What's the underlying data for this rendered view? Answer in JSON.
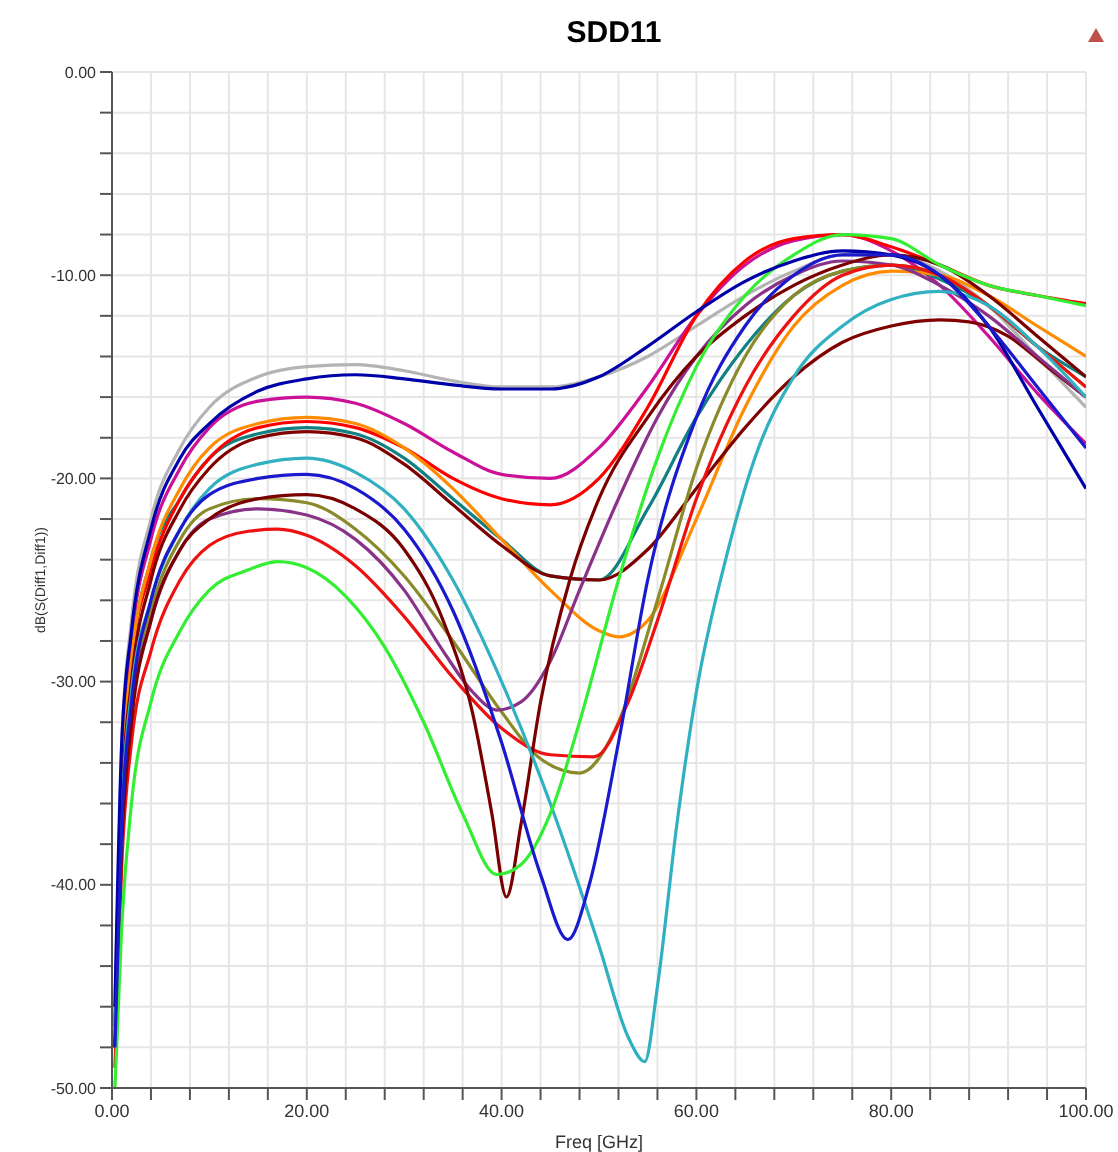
{
  "chart_data": {
    "type": "line",
    "title": "SDD11",
    "xlabel": "Freq [GHz]",
    "ylabel": "dB(S(Diff1,Diff1))",
    "grid": true,
    "line_style": "solid",
    "xlim": [
      0,
      100
    ],
    "ylim": [
      -50,
      0
    ],
    "xticks": [
      {
        "value": 0,
        "label": "0.00"
      },
      {
        "value": 4,
        "label": null
      },
      {
        "value": 8,
        "label": null
      },
      {
        "value": 12,
        "label": null
      },
      {
        "value": 16,
        "label": null
      },
      {
        "value": 20,
        "label": "20.00"
      },
      {
        "value": 24,
        "label": null
      },
      {
        "value": 28,
        "label": null
      },
      {
        "value": 32,
        "label": null
      },
      {
        "value": 36,
        "label": null
      },
      {
        "value": 40,
        "label": "40.00"
      },
      {
        "value": 44,
        "label": null
      },
      {
        "value": 48,
        "label": null
      },
      {
        "value": 52,
        "label": null
      },
      {
        "value": 56,
        "label": null
      },
      {
        "value": 60,
        "label": "60.00"
      },
      {
        "value": 64,
        "label": null
      },
      {
        "value": 68,
        "label": null
      },
      {
        "value": 72,
        "label": null
      },
      {
        "value": 76,
        "label": null
      },
      {
        "value": 80,
        "label": "80.00"
      },
      {
        "value": 84,
        "label": null
      },
      {
        "value": 88,
        "label": null
      },
      {
        "value": 92,
        "label": null
      },
      {
        "value": 96,
        "label": null
      },
      {
        "value": 100,
        "label": "100.00"
      }
    ],
    "yticks": [
      {
        "value": -50,
        "label": "-50.00"
      },
      {
        "value": -48,
        "label": null
      },
      {
        "value": -46,
        "label": null
      },
      {
        "value": -44,
        "label": null
      },
      {
        "value": -42,
        "label": null
      },
      {
        "value": -40,
        "label": "-40.00"
      },
      {
        "value": -38,
        "label": null
      },
      {
        "value": -36,
        "label": null
      },
      {
        "value": -34,
        "label": null
      },
      {
        "value": -32,
        "label": null
      },
      {
        "value": -30,
        "label": "-30.00"
      },
      {
        "value": -28,
        "label": null
      },
      {
        "value": -26,
        "label": null
      },
      {
        "value": -24,
        "label": null
      },
      {
        "value": -22,
        "label": null
      },
      {
        "value": -20,
        "label": "-20.00"
      },
      {
        "value": -18,
        "label": null
      },
      {
        "value": -16,
        "label": null
      },
      {
        "value": -14,
        "label": null
      },
      {
        "value": -12,
        "label": null
      },
      {
        "value": -10,
        "label": "-10.00"
      },
      {
        "value": -8,
        "label": null
      },
      {
        "value": -6,
        "label": null
      },
      {
        "value": -4,
        "label": null
      },
      {
        "value": -2,
        "label": null
      },
      {
        "value": 0,
        "label": "0.00"
      }
    ],
    "series": [
      {
        "color": "#b4b4b4",
        "x": [
          0.3,
          1,
          2,
          4,
          7,
          10,
          15,
          20,
          25,
          30,
          35,
          40,
          45,
          50,
          55,
          60,
          65,
          70,
          75,
          80,
          85,
          90,
          95,
          100
        ],
        "values": [
          -46,
          -33,
          -27,
          -22,
          -18.5,
          -16.5,
          -15,
          -14.5,
          -14.4,
          -14.7,
          -15.2,
          -15.5,
          -15.5,
          -15,
          -14,
          -12.5,
          -11,
          -9.8,
          -9,
          -9,
          -9.8,
          -11.5,
          -14,
          -16.5
        ]
      },
      {
        "color": "#cc1199",
        "x": [
          0.3,
          1,
          2,
          4,
          7,
          10,
          15,
          20,
          25,
          30,
          35,
          40,
          45,
          50,
          55,
          60,
          65,
          70,
          75,
          80,
          85,
          90,
          95,
          100
        ],
        "values": [
          -47,
          -34,
          -28,
          -23,
          -19.5,
          -17.5,
          -16.2,
          -16,
          -16.3,
          -17.3,
          -18.7,
          -19.8,
          -20,
          -18.5,
          -15.5,
          -12,
          -9.5,
          -8.3,
          -8,
          -8.8,
          -10.5,
          -13,
          -15.8,
          -18.3
        ]
      },
      {
        "color": "#108080",
        "x": [
          0.3,
          1,
          2,
          4,
          7,
          10,
          15,
          20,
          25,
          30,
          35,
          40,
          45,
          50,
          55,
          60,
          65,
          70,
          75,
          80,
          85,
          90,
          95,
          100
        ],
        "values": [
          -47,
          -35,
          -29,
          -24,
          -21,
          -19,
          -17.8,
          -17.5,
          -17.8,
          -19,
          -21,
          -23,
          -24.8,
          -25,
          -21.5,
          -17,
          -13.5,
          -11,
          -9.8,
          -9.5,
          -10.2,
          -11.5,
          -13.5,
          -15
        ]
      },
      {
        "color": "#ff0000",
        "x": [
          0.3,
          1,
          2,
          4,
          7,
          10,
          15,
          20,
          25,
          30,
          35,
          40,
          45,
          50,
          55,
          60,
          65,
          70,
          75,
          80,
          85,
          90,
          95,
          100
        ],
        "values": [
          -47,
          -35,
          -29,
          -24.5,
          -21,
          -19,
          -17.5,
          -17.2,
          -17.5,
          -18.5,
          -20,
          -21,
          -21.3,
          -20,
          -16.5,
          -12,
          -9.3,
          -8.2,
          -8,
          -8.6,
          -9.5,
          -10.5,
          -11,
          -11.4
        ]
      },
      {
        "color": "#ff8c00",
        "x": [
          0.3,
          1,
          2,
          4,
          7,
          10,
          15,
          20,
          25,
          30,
          35,
          40,
          45,
          50,
          52,
          55,
          60,
          65,
          70,
          75,
          80,
          85,
          90,
          95,
          100
        ],
        "values": [
          -47,
          -35,
          -29,
          -24,
          -20.5,
          -18.5,
          -17.3,
          -17,
          -17.3,
          -18.5,
          -20.5,
          -23,
          -25.5,
          -27.5,
          -27.8,
          -27,
          -22,
          -16.5,
          -12.5,
          -10.5,
          -9.8,
          -10,
          -11,
          -12.5,
          -14
        ]
      },
      {
        "color": "#800000",
        "x": [
          0.3,
          1,
          2,
          4,
          7,
          10,
          15,
          20,
          25,
          30,
          35,
          40,
          45,
          50,
          55,
          60,
          65,
          70,
          75,
          80,
          85,
          88,
          92,
          96,
          100
        ],
        "values": [
          -48,
          -36,
          -30,
          -25,
          -21.5,
          -19.5,
          -18,
          -17.7,
          -18,
          -19.3,
          -21.3,
          -23.3,
          -24.8,
          -25,
          -23.5,
          -20.5,
          -17.5,
          -15,
          -13.3,
          -12.5,
          -12.2,
          -12.3,
          -13,
          -14.5,
          -16
        ]
      },
      {
        "color": "#8a8a2a",
        "x": [
          0.3,
          1,
          2,
          4,
          7,
          10,
          15,
          20,
          25,
          30,
          35,
          40,
          44,
          48,
          52,
          56,
          60,
          65,
          70,
          75,
          80,
          85,
          90,
          95,
          100
        ],
        "values": [
          -48,
          -37,
          -31,
          -26.5,
          -23,
          -21.5,
          -21,
          -21.2,
          -22.5,
          -24.8,
          -28,
          -31.5,
          -33.8,
          -34.5,
          -32,
          -26,
          -19.5,
          -14,
          -11,
          -9.8,
          -9.5,
          -10,
          -11.5,
          -13.5,
          -15.5
        ]
      },
      {
        "color": "#883388",
        "x": [
          0.3,
          1,
          2,
          4,
          7,
          10,
          15,
          20,
          25,
          30,
          34,
          37,
          39.5,
          42,
          45,
          48,
          52,
          56,
          60,
          65,
          70,
          75,
          80,
          85,
          90,
          95,
          100
        ],
        "values": [
          -48,
          -37,
          -31.5,
          -27,
          -23.5,
          -22,
          -21.5,
          -21.8,
          -23,
          -25.5,
          -28.5,
          -30.5,
          -31.4,
          -31,
          -29,
          -25.5,
          -21,
          -17,
          -14,
          -11.5,
          -10,
          -9.3,
          -9.5,
          -10.5,
          -12,
          -14,
          -16
        ]
      },
      {
        "color": "#ee1111",
        "x": [
          0.3,
          1,
          2,
          4,
          7,
          10,
          14,
          17,
          20,
          25,
          30,
          35,
          40,
          45,
          49.5,
          53,
          56,
          60,
          65,
          70,
          75,
          80,
          85,
          90,
          95,
          100
        ],
        "values": [
          -49,
          -39,
          -33,
          -28.5,
          -25,
          -23.3,
          -22.6,
          -22.5,
          -22.8,
          -24.3,
          -26.8,
          -29.8,
          -32.3,
          -33.6,
          -33.7,
          -31,
          -27,
          -21,
          -15.5,
          -12,
          -10,
          -9.5,
          -10,
          -11.5,
          -13.5,
          -15.5
        ]
      },
      {
        "color": "#7a0000",
        "x": [
          0.3,
          1,
          2,
          4,
          7,
          10,
          15,
          20,
          25,
          30,
          34,
          37,
          39,
          40.5,
          42,
          44,
          47,
          50,
          55,
          60,
          65,
          70,
          75,
          80,
          85,
          90,
          95,
          100
        ],
        "values": [
          -48,
          -38,
          -32,
          -27,
          -23.5,
          -22,
          -21,
          -20.8,
          -21.5,
          -23.5,
          -27,
          -31.5,
          -36.5,
          -40.6,
          -37,
          -31,
          -25,
          -21,
          -17,
          -14,
          -12,
          -10.5,
          -9.5,
          -9,
          -9.5,
          -11,
          -13,
          -15
        ]
      },
      {
        "color": "#30b0c0",
        "x": [
          0.3,
          1,
          2,
          4,
          7,
          10,
          15,
          20,
          25,
          30,
          35,
          40,
          45,
          50,
          53,
          54.7,
          56,
          58,
          60,
          63,
          66,
          70,
          75,
          80,
          85,
          90,
          95,
          100
        ],
        "values": [
          -47.5,
          -36.5,
          -30.5,
          -26,
          -22.5,
          -20.5,
          -19.3,
          -19,
          -19.7,
          -21.5,
          -25,
          -30,
          -36,
          -43,
          -47.5,
          -48.7,
          -45,
          -37,
          -30.5,
          -24,
          -19,
          -15,
          -12.5,
          -11.2,
          -10.8,
          -11.5,
          -13.5,
          -16
        ]
      },
      {
        "color": "#33ee33",
        "x": [
          0.3,
          1,
          2,
          4,
          7,
          10,
          14,
          17,
          20,
          24,
          28,
          32,
          36,
          39.5,
          42,
          45,
          48,
          52,
          56,
          60,
          65,
          70,
          75,
          80,
          85,
          90,
          95,
          100
        ],
        "values": [
          -50,
          -42,
          -36,
          -31,
          -27.5,
          -25.5,
          -24.5,
          -24.1,
          -24.4,
          -25.8,
          -28.3,
          -32,
          -36.5,
          -39.5,
          -39,
          -36.5,
          -32,
          -25,
          -19,
          -14.5,
          -11,
          -9,
          -8,
          -8.2,
          -9.5,
          -10.5,
          -11,
          -11.5
        ]
      },
      {
        "color": "#0000aa",
        "x": [
          0.3,
          1,
          2,
          4,
          7,
          10,
          15,
          20,
          25,
          30,
          35,
          40,
          45,
          50,
          55,
          60,
          65,
          70,
          75,
          80,
          85,
          90,
          95,
          100
        ],
        "values": [
          -46,
          -33,
          -27.5,
          -22.5,
          -19,
          -17.3,
          -15.7,
          -15.1,
          -14.9,
          -15.1,
          -15.4,
          -15.6,
          -15.6,
          -15,
          -13.5,
          -11.8,
          -10.3,
          -9.3,
          -8.8,
          -9,
          -10,
          -12.5,
          -16.5,
          -20.5
        ]
      },
      {
        "color": "#1a1acc",
        "x": [
          0.3,
          1,
          2,
          4,
          7,
          10,
          15,
          20,
          25,
          30,
          35,
          40,
          44,
          46.8,
          49,
          52,
          55,
          60,
          65,
          70,
          75,
          80,
          85,
          90,
          95,
          100
        ],
        "values": [
          -48,
          -37,
          -31,
          -26,
          -22.5,
          -20.8,
          -20,
          -19.8,
          -20.5,
          -22.5,
          -26.5,
          -33,
          -39.5,
          -42.7,
          -40,
          -33,
          -25,
          -17,
          -12.5,
          -10,
          -9,
          -9,
          -10,
          -12.5,
          -15.5,
          -18.5
        ]
      }
    ]
  }
}
